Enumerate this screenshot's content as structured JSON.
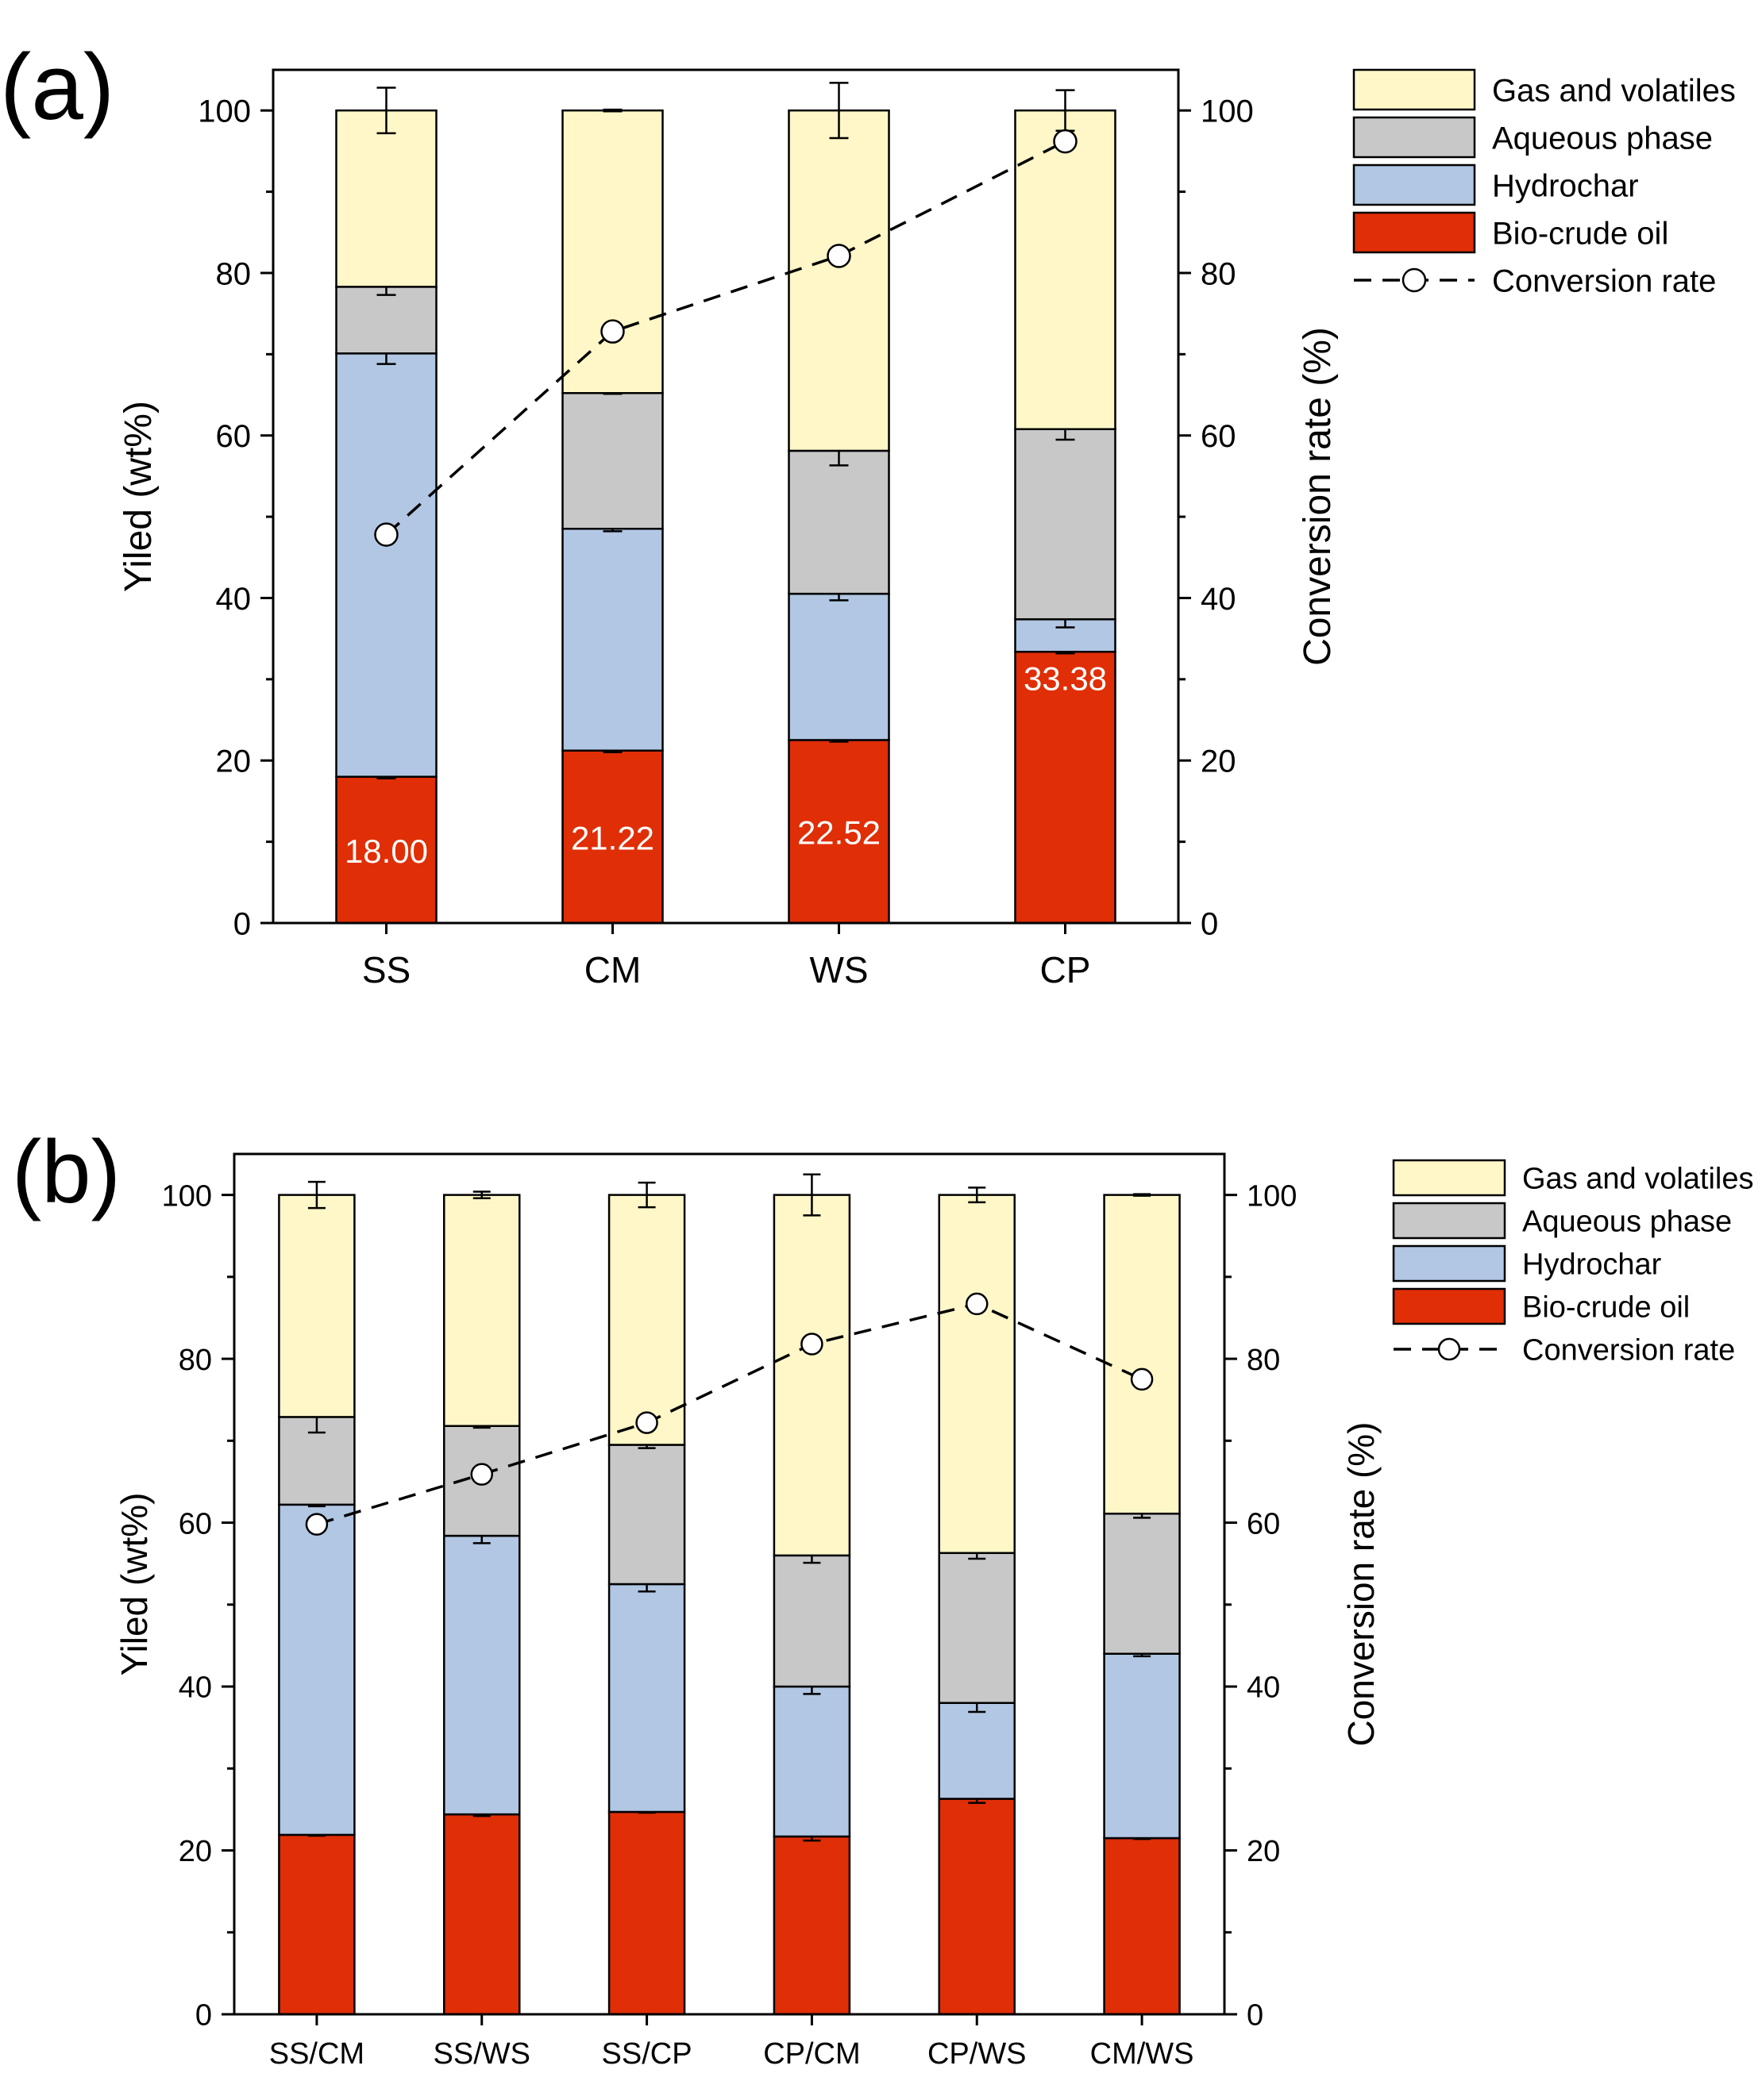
{
  "colors": {
    "gas": "#fff7c7",
    "aqueous": "#c8c8c8",
    "hydrochar": "#b1c7e3",
    "oil": "#e02e06"
  },
  "chart_data": [
    {
      "type": "bar",
      "panel_label": "(a)",
      "stacked": true,
      "title": "",
      "xlabel": "",
      "ylabel": "Yiled (wt%)",
      "y2label": "Conversion rate (%)",
      "ylim": [
        0,
        105
      ],
      "y2lim": [
        0,
        105
      ],
      "yticks": [
        "0",
        "20",
        "40",
        "60",
        "80",
        "100"
      ],
      "y2ticks": [
        "0",
        "20",
        "40",
        "60",
        "80",
        "100"
      ],
      "categories": [
        "SS",
        "CM",
        "WS",
        "CP"
      ],
      "series": [
        {
          "name": "Bio-crude oil",
          "key": "oil",
          "values": [
            18.0,
            21.22,
            22.52,
            33.38
          ],
          "errors": [
            0.2,
            0.2,
            0.2,
            0.2
          ]
        },
        {
          "name": "Hydrochar",
          "key": "hydrochar",
          "values": [
            52.1,
            27.3,
            18.0,
            4.0
          ],
          "errors": [
            1.3,
            0.3,
            0.8,
            1.0
          ]
        },
        {
          "name": "Aqueous phase",
          "key": "aqueous",
          "values": [
            8.2,
            16.7,
            17.6,
            23.4
          ],
          "errors": [
            1.0,
            0.1,
            1.8,
            1.3
          ]
        },
        {
          "name": "Gas and volatiles",
          "key": "gas",
          "values": [
            21.7,
            34.78,
            41.88,
            39.22
          ],
          "errors": [
            2.8,
            0.1,
            3.4,
            2.5
          ]
        }
      ],
      "data_labels": [
        "18.00",
        "21.22",
        "22.52",
        "33.38"
      ],
      "line": {
        "name": "Conversion rate",
        "values": [
          47.8,
          72.8,
          82.1,
          96.2
        ]
      },
      "legend": [
        "Gas and volatiles",
        "Aqueous phase",
        "Hydrochar",
        "Bio-crude oil",
        "Conversion rate"
      ],
      "legend_position": "right"
    },
    {
      "type": "bar",
      "panel_label": "(b)",
      "stacked": true,
      "title": "",
      "xlabel": "",
      "ylabel": "Yiled (wt%)",
      "y2label": "Conversion rate (%)",
      "ylim": [
        0,
        105
      ],
      "y2lim": [
        0,
        105
      ],
      "yticks": [
        "0",
        "20",
        "40",
        "60",
        "80",
        "100"
      ],
      "y2ticks": [
        "0",
        "20",
        "40",
        "60",
        "80",
        "100"
      ],
      "categories": [
        "SS/CM",
        "SS/WS",
        "SS/CP",
        "CP/CM",
        "CP/WS",
        "CM/WS"
      ],
      "series": [
        {
          "name": "Bio-crude oil",
          "key": "oil",
          "values": [
            21.9,
            24.4,
            24.7,
            21.7,
            26.3,
            21.5
          ],
          "errors": [
            0.1,
            0.2,
            0.1,
            0.5,
            0.5,
            0.1
          ]
        },
        {
          "name": "Hydrochar",
          "key": "hydrochar",
          "values": [
            40.3,
            34.0,
            27.8,
            18.3,
            11.7,
            22.5
          ],
          "errors": [
            0.2,
            0.9,
            0.9,
            0.9,
            1.1,
            0.3
          ]
        },
        {
          "name": "Aqueous phase",
          "key": "aqueous",
          "values": [
            10.7,
            13.4,
            17.0,
            16.0,
            18.3,
            17.1
          ],
          "errors": [
            1.9,
            0.2,
            0.4,
            0.9,
            0.7,
            0.5
          ]
        },
        {
          "name": "Gas and volatiles",
          "key": "gas",
          "values": [
            27.1,
            28.2,
            30.5,
            44.0,
            43.7,
            38.9
          ],
          "errors": [
            1.6,
            0.4,
            1.5,
            2.5,
            0.9,
            0.1
          ]
        }
      ],
      "line": {
        "name": "Conversion rate",
        "values": [
          59.8,
          65.9,
          72.2,
          81.8,
          86.7,
          77.5
        ]
      },
      "legend": [
        "Gas and volatiles",
        "Aqueous phase",
        "Hydrochar",
        "Bio-crude oil",
        "Conversion rate"
      ],
      "legend_position": "right"
    }
  ]
}
